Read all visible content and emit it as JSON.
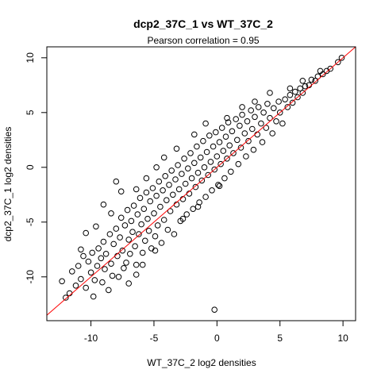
{
  "chart_data": {
    "type": "scatter",
    "title": "dcp2_37C_1 vs WT_37C_2",
    "subtitle": "Pearson correlation =  0.95",
    "xlabel": "WT_37C_2 log2 densities",
    "ylabel": "dcp2_37C_1 log2 densities",
    "xlim": [
      -13.5,
      11
    ],
    "ylim": [
      -14,
      11
    ],
    "x_ticks": [
      -10,
      -5,
      0,
      5,
      10
    ],
    "y_ticks": [
      -10,
      -5,
      0,
      5,
      10
    ],
    "x_tick_labels": [
      "-10",
      "-5",
      "0",
      "5",
      "10"
    ],
    "y_tick_labels": [
      "-10",
      "-5",
      "0",
      "5",
      "10"
    ],
    "grid": false,
    "fit_line": {
      "slope": 1,
      "intercept": 0,
      "color": "#ff0000"
    },
    "marker": "open-circle",
    "point_color": "#000000",
    "series": [
      {
        "points": [
          [
            -12.3,
            -10.4
          ],
          [
            -12.0,
            -11.9
          ],
          [
            -11.7,
            -11.5
          ],
          [
            -11.5,
            -9.5
          ],
          [
            -11.2,
            -10.8
          ],
          [
            -11.0,
            -9.0
          ],
          [
            -10.8,
            -10.2
          ],
          [
            -10.6,
            -8.1
          ],
          [
            -10.4,
            -11.0
          ],
          [
            -10.2,
            -8.6
          ],
          [
            -10.0,
            -9.6
          ],
          [
            -9.9,
            -7.8
          ],
          [
            -9.8,
            -11.8
          ],
          [
            -9.7,
            -10.3
          ],
          [
            -9.5,
            -9.0
          ],
          [
            -9.4,
            -7.4
          ],
          [
            -9.2,
            -8.3
          ],
          [
            -9.1,
            -10.5
          ],
          [
            -9.0,
            -6.8
          ],
          [
            -8.9,
            -9.3
          ],
          [
            -8.8,
            -7.9
          ],
          [
            -8.6,
            -11.2
          ],
          [
            -8.5,
            -6.1
          ],
          [
            -8.4,
            -8.8
          ],
          [
            -8.3,
            -9.9
          ],
          [
            -8.2,
            -7.0
          ],
          [
            -8.0,
            -5.6
          ],
          [
            -7.9,
            -8.1
          ],
          [
            -7.8,
            -10.0
          ],
          [
            -7.7,
            -6.4
          ],
          [
            -7.6,
            -4.6
          ],
          [
            -7.5,
            -7.6
          ],
          [
            -7.4,
            -9.2
          ],
          [
            -7.3,
            -5.3
          ],
          [
            -7.2,
            -8.7
          ],
          [
            -7.1,
            -3.9
          ],
          [
            -7.0,
            -6.6
          ],
          [
            -6.9,
            -7.9
          ],
          [
            -6.8,
            -4.9
          ],
          [
            -6.7,
            -5.9
          ],
          [
            -6.6,
            -3.5
          ],
          [
            -6.5,
            -7.2
          ],
          [
            -6.4,
            -8.9
          ],
          [
            -6.3,
            -4.3
          ],
          [
            -6.2,
            -6.1
          ],
          [
            -6.1,
            -2.8
          ],
          [
            -6.0,
            -5.2
          ],
          [
            -5.9,
            -7.8
          ],
          [
            -5.8,
            -3.8
          ],
          [
            -5.7,
            -6.7
          ],
          [
            -5.6,
            -2.3
          ],
          [
            -5.5,
            -4.7
          ],
          [
            -5.4,
            -5.8
          ],
          [
            -5.3,
            -3.1
          ],
          [
            -5.2,
            -7.4
          ],
          [
            -5.1,
            -1.9
          ],
          [
            -5.0,
            -4.2
          ],
          [
            -4.9,
            -6.3
          ],
          [
            -4.8,
            -2.6
          ],
          [
            -4.7,
            -5.3
          ],
          [
            -4.6,
            -1.3
          ],
          [
            -4.5,
            -3.6
          ],
          [
            -4.4,
            -6.9
          ],
          [
            -4.3,
            -2.1
          ],
          [
            -4.2,
            -4.8
          ],
          [
            -4.1,
            -0.8
          ],
          [
            -4.0,
            -3.0
          ],
          [
            -3.9,
            -5.7
          ],
          [
            -3.8,
            -1.6
          ],
          [
            -3.7,
            -4.0
          ],
          [
            -3.6,
            -0.3
          ],
          [
            -3.5,
            -2.5
          ],
          [
            -3.4,
            -6.1
          ],
          [
            -3.3,
            -1.1
          ],
          [
            -3.2,
            -3.4
          ],
          [
            -3.1,
            0.2
          ],
          [
            -3.0,
            -2.0
          ],
          [
            -2.9,
            -4.9
          ],
          [
            -2.8,
            -0.6
          ],
          [
            -2.7,
            -2.9
          ],
          [
            -2.6,
            0.8
          ],
          [
            -2.5,
            -1.5
          ],
          [
            -2.4,
            -4.3
          ],
          [
            -2.3,
            -0.1
          ],
          [
            -2.2,
            -2.4
          ],
          [
            -2.1,
            1.3
          ],
          [
            -2.0,
            -1.0
          ],
          [
            -1.9,
            -3.8
          ],
          [
            -1.8,
            0.4
          ],
          [
            -1.7,
            -1.8
          ],
          [
            -1.6,
            1.9
          ],
          [
            -1.5,
            -0.5
          ],
          [
            -1.4,
            -3.2
          ],
          [
            -1.3,
            0.9
          ],
          [
            -1.2,
            -1.2
          ],
          [
            -1.1,
            2.4
          ],
          [
            -1.0,
            0.0
          ],
          [
            -0.9,
            -2.7
          ],
          [
            -0.8,
            1.4
          ],
          [
            -0.7,
            -0.7
          ],
          [
            -0.6,
            2.9
          ],
          [
            -0.5,
            0.5
          ],
          [
            -0.4,
            -2.1
          ],
          [
            -0.3,
            1.9
          ],
          [
            -0.2,
            -0.2
          ],
          [
            -0.1,
            3.2
          ],
          [
            0.0,
            1.0
          ],
          [
            0.1,
            -1.6
          ],
          [
            0.2,
            2.3
          ],
          [
            0.3,
            0.3
          ],
          [
            0.4,
            3.6
          ],
          [
            0.5,
            1.5
          ],
          [
            0.6,
            -1.0
          ],
          [
            0.7,
            2.8
          ],
          [
            0.8,
            0.8
          ],
          [
            0.9,
            4.1
          ],
          [
            1.0,
            2.0
          ],
          [
            1.1,
            -0.4
          ],
          [
            1.2,
            3.3
          ],
          [
            1.3,
            1.3
          ],
          [
            1.5,
            4.4
          ],
          [
            1.6,
            2.5
          ],
          [
            1.7,
            0.3
          ],
          [
            1.8,
            3.8
          ],
          [
            1.9,
            1.8
          ],
          [
            2.0,
            4.8
          ],
          [
            2.2,
            3.1
          ],
          [
            2.3,
            1.0
          ],
          [
            2.4,
            4.2
          ],
          [
            2.5,
            2.4
          ],
          [
            2.7,
            5.2
          ],
          [
            2.8,
            3.5
          ],
          [
            2.9,
            1.6
          ],
          [
            3.0,
            4.6
          ],
          [
            3.2,
            3.0
          ],
          [
            3.3,
            5.5
          ],
          [
            3.5,
            4.0
          ],
          [
            3.6,
            2.3
          ],
          [
            3.7,
            5.0
          ],
          [
            3.9,
            3.6
          ],
          [
            4.0,
            5.8
          ],
          [
            4.2,
            4.5
          ],
          [
            4.4,
            3.1
          ],
          [
            4.5,
            5.4
          ],
          [
            4.7,
            4.2
          ],
          [
            4.9,
            6.0
          ],
          [
            5.0,
            5.0
          ],
          [
            5.2,
            4.0
          ],
          [
            5.4,
            6.2
          ],
          [
            5.6,
            5.5
          ],
          [
            5.8,
            6.6
          ],
          [
            6.0,
            5.9
          ],
          [
            6.2,
            6.9
          ],
          [
            6.4,
            6.4
          ],
          [
            6.6,
            7.2
          ],
          [
            6.8,
            6.8
          ],
          [
            7.0,
            7.4
          ],
          [
            7.3,
            7.5
          ],
          [
            7.5,
            8.0
          ],
          [
            7.8,
            7.9
          ],
          [
            8.0,
            8.3
          ],
          [
            8.4,
            8.5
          ],
          [
            8.7,
            8.8
          ],
          [
            9.0,
            9.0
          ],
          [
            9.6,
            9.6
          ],
          [
            9.9,
            10.0
          ],
          [
            -8.0,
            -1.3
          ],
          [
            -7.6,
            -2.2
          ],
          [
            -9.0,
            -3.4
          ],
          [
            -8.4,
            -4.2
          ],
          [
            -9.6,
            -5.4
          ],
          [
            -10.4,
            -6.0
          ],
          [
            -10.8,
            -7.5
          ],
          [
            -6.4,
            -9.8
          ],
          [
            -7.0,
            -10.6
          ],
          [
            -5.9,
            -8.9
          ],
          [
            -4.9,
            -7.6
          ],
          [
            -2.7,
            -4.7
          ],
          [
            -1.5,
            -3.6
          ],
          [
            0.2,
            -1.7
          ],
          [
            -0.2,
            -13.0
          ],
          [
            -6.4,
            -2.0
          ],
          [
            -5.6,
            -1.0
          ],
          [
            -4.8,
            0.0
          ],
          [
            -4.2,
            0.9
          ],
          [
            -3.2,
            1.7
          ],
          [
            -1.8,
            3.0
          ],
          [
            -0.9,
            4.0
          ],
          [
            0.8,
            4.5
          ],
          [
            2.0,
            5.5
          ],
          [
            3.0,
            6.0
          ],
          [
            4.2,
            6.8
          ],
          [
            5.8,
            7.2
          ],
          [
            6.8,
            7.9
          ],
          [
            8.2,
            8.8
          ]
        ]
      }
    ]
  }
}
